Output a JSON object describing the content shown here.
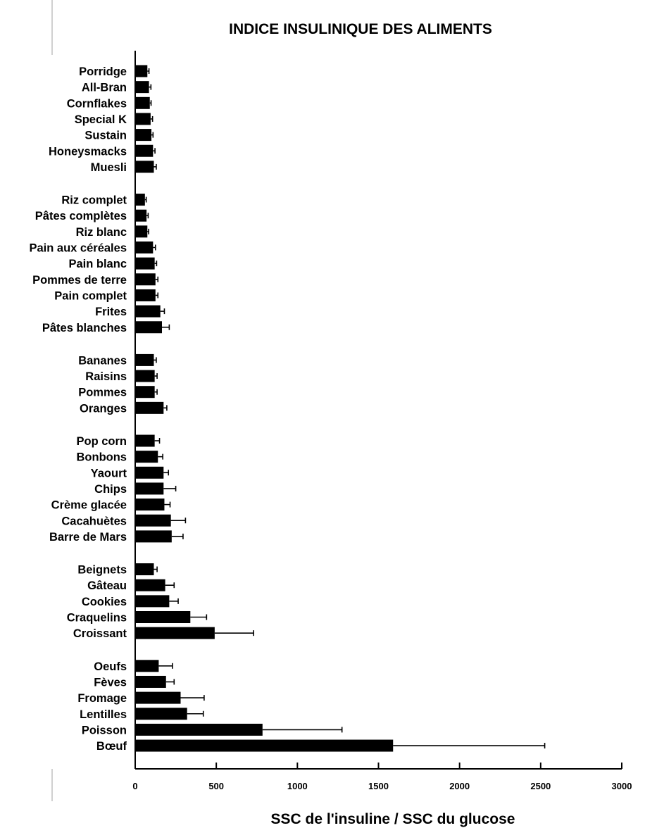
{
  "chart_data": {
    "type": "bar",
    "orientation": "horizontal",
    "title": "INDICE INSULINIQUE DES ALIMENTS",
    "xlabel": "SSC de l'insuline / SSC du glucose",
    "ylabel": "",
    "xlim": [
      0,
      3000
    ],
    "xticks": [
      0,
      500,
      1000,
      1500,
      2000,
      2500,
      3000
    ],
    "grid": false,
    "error_bars": true,
    "colors": {
      "bar": "#000000",
      "axis": "#000000",
      "background": "#ffffff"
    },
    "groups": [
      {
        "categories": [
          "Porridge",
          "All-Bran",
          "Cornflakes",
          "Special K",
          "Sustain",
          "Honeysmacks",
          "Muesli"
        ],
        "values": [
          75,
          85,
          90,
          95,
          100,
          110,
          115
        ],
        "errors": [
          10,
          12,
          8,
          12,
          10,
          12,
          15
        ]
      },
      {
        "categories": [
          "Riz complet",
          "Pâtes complètes",
          "Riz blanc",
          "Pain aux céréales",
          "Pain blanc",
          "Pommes de terre",
          "Pain complet",
          "Frites",
          "Pâtes blanches"
        ],
        "values": [
          60,
          70,
          75,
          110,
          120,
          125,
          125,
          155,
          165
        ],
        "errors": [
          8,
          10,
          8,
          15,
          12,
          15,
          15,
          25,
          45
        ]
      },
      {
        "categories": [
          "Bananes",
          "Raisins",
          "Pommes",
          "Oranges"
        ],
        "values": [
          115,
          120,
          120,
          175
        ],
        "errors": [
          15,
          15,
          15,
          20
        ]
      },
      {
        "categories": [
          "Pop corn",
          "Bonbons",
          "Yaourt",
          "Chips",
          "Crème glacée",
          "Cacahuètes",
          "Barre de Mars"
        ],
        "values": [
          120,
          140,
          175,
          175,
          180,
          220,
          225
        ],
        "errors": [
          30,
          30,
          30,
          75,
          35,
          90,
          70
        ]
      },
      {
        "categories": [
          "Beignets",
          "Gâteau",
          "Cookies",
          "Craquelins",
          "Croissant"
        ],
        "values": [
          115,
          185,
          210,
          340,
          490
        ],
        "errors": [
          20,
          55,
          55,
          100,
          240
        ]
      },
      {
        "categories": [
          "Oeufs",
          "Fèves",
          "Fromage",
          "Lentilles",
          "Poisson",
          "Bœuf"
        ],
        "values": [
          145,
          190,
          280,
          320,
          785,
          1590
        ],
        "errors": [
          85,
          50,
          145,
          100,
          490,
          935
        ]
      }
    ]
  }
}
